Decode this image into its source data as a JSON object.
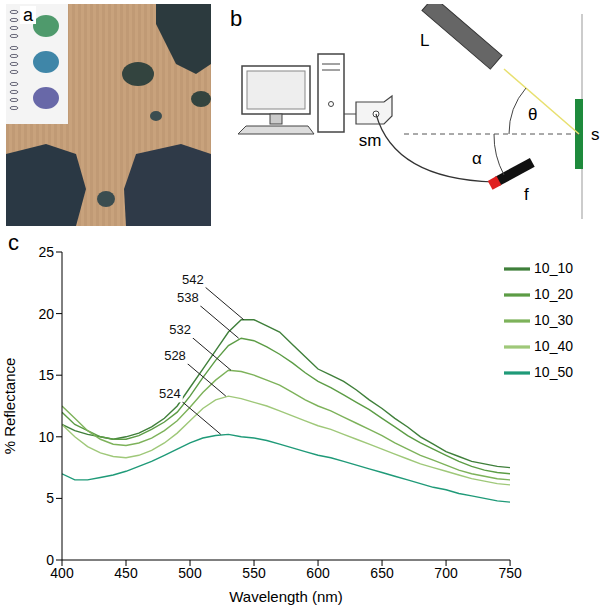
{
  "panel_a": {
    "letter": "a"
  },
  "panel_b": {
    "letter": "b",
    "labels": {
      "laser": "L",
      "angle_incidence": "θ",
      "sample": "s",
      "angle_detection": "α",
      "spectrometer": "sm",
      "fiber": "f"
    }
  },
  "chart_data": {
    "type": "line",
    "panel_letter": "c",
    "x_label": "Wavelength (nm)",
    "y_label": "% Reflectance",
    "xlim": [
      400,
      750
    ],
    "xticks": [
      400,
      450,
      500,
      550,
      600,
      650,
      700,
      750
    ],
    "ylim": [
      0,
      25
    ],
    "yticks": [
      0,
      5,
      10,
      15,
      20,
      25
    ],
    "legend": "upper right",
    "x": [
      400,
      410,
      420,
      430,
      440,
      450,
      460,
      470,
      480,
      490,
      500,
      510,
      520,
      530,
      540,
      550,
      560,
      570,
      580,
      590,
      600,
      610,
      620,
      630,
      640,
      650,
      660,
      670,
      680,
      690,
      700,
      710,
      720,
      730,
      740,
      750
    ],
    "series": [
      {
        "name": "10_10",
        "color": "#3f7f3a",
        "values": [
          11,
          10.5,
          10.2,
          10,
          9.8,
          10,
          10.3,
          10.8,
          11.5,
          12.5,
          14,
          15.5,
          17,
          18.5,
          19.5,
          19.5,
          19,
          18.5,
          17.5,
          16.5,
          15.5,
          15,
          14.5,
          13.8,
          13,
          12.3,
          11.5,
          10.8,
          10,
          9.4,
          8.8,
          8.4,
          8,
          7.8,
          7.6,
          7.5
        ]
      },
      {
        "name": "10_20",
        "color": "#5c9c45",
        "values": [
          12,
          11,
          10.5,
          10,
          9.8,
          9.8,
          10.1,
          10.6,
          11.2,
          12,
          13.3,
          14.8,
          16.2,
          17.4,
          18,
          17.8,
          17.3,
          16.7,
          16,
          15.2,
          14.5,
          14,
          13.4,
          12.8,
          12.2,
          11.5,
          10.8,
          10.1,
          9.5,
          9,
          8.5,
          8,
          7.6,
          7.3,
          7.1,
          7
        ]
      },
      {
        "name": "10_30",
        "color": "#7db25a",
        "values": [
          12.5,
          11.5,
          10.5,
          9.8,
          9.4,
          9.3,
          9.5,
          9.9,
          10.5,
          11.3,
          12.4,
          13.6,
          14.6,
          15.4,
          15.3,
          15,
          14.6,
          14.2,
          13.6,
          13,
          12.5,
          12.1,
          11.6,
          11.1,
          10.6,
          10.1,
          9.5,
          9,
          8.5,
          8.1,
          7.7,
          7.3,
          7,
          6.8,
          6.6,
          6.5
        ]
      },
      {
        "name": "10_40",
        "color": "#9fc879",
        "values": [
          11,
          10,
          9.2,
          8.7,
          8.4,
          8.3,
          8.5,
          8.9,
          9.5,
          10.3,
          11.3,
          12.3,
          13,
          13.3,
          13.1,
          12.8,
          12.5,
          12.1,
          11.7,
          11.3,
          10.9,
          10.6,
          10.2,
          9.8,
          9.4,
          9,
          8.6,
          8.2,
          7.8,
          7.5,
          7.2,
          6.9,
          6.6,
          6.4,
          6.2,
          6.1
        ]
      },
      {
        "name": "10_50",
        "color": "#1f9a78",
        "values": [
          7,
          6.5,
          6.5,
          6.7,
          6.9,
          7.2,
          7.6,
          8,
          8.5,
          9,
          9.5,
          9.9,
          10.1,
          10.2,
          10,
          9.9,
          9.7,
          9.4,
          9.1,
          8.8,
          8.5,
          8.3,
          8,
          7.7,
          7.4,
          7.1,
          6.8,
          6.5,
          6.2,
          5.9,
          5.7,
          5.4,
          5.2,
          5,
          4.8,
          4.7
        ]
      }
    ],
    "annotations": [
      {
        "label": "542",
        "x": 542,
        "y": 19.5
      },
      {
        "label": "538",
        "x": 538,
        "y": 18
      },
      {
        "label": "532",
        "x": 532,
        "y": 15.4
      },
      {
        "label": "528",
        "x": 528,
        "y": 13.3
      },
      {
        "label": "524",
        "x": 524,
        "y": 10.2
      }
    ]
  }
}
